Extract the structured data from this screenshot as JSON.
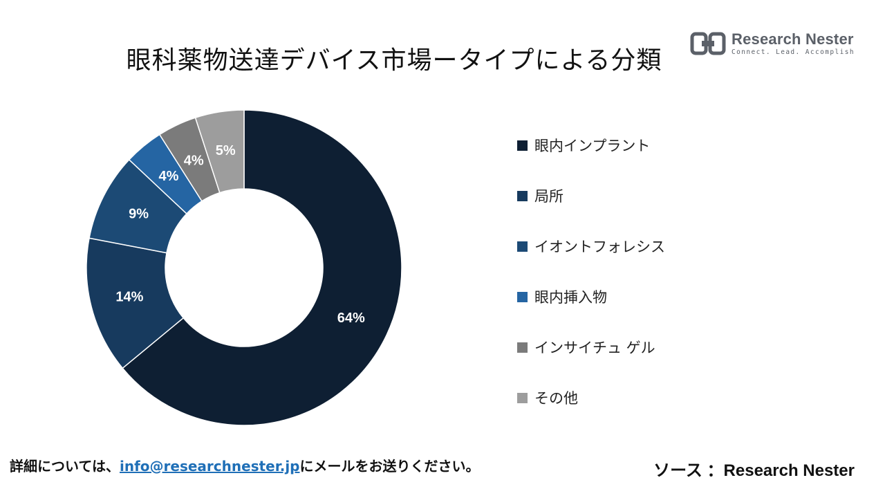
{
  "title": "眼科薬物送達デバイス市場ータイプによる分類",
  "logo": {
    "name": "Research Nester",
    "tagline": "Connect. Lead. Accomplish"
  },
  "colors": {
    "implant": "#0e1f33",
    "local": "#173a5e",
    "iontophoresis": "#1c4a75",
    "intraocular_insert": "#2565a3",
    "in_situ_gel": "#7b7b7b",
    "other": "#9d9d9d",
    "link": "#1f6fb7",
    "logo": "#5b6068"
  },
  "chart_data": {
    "type": "pie",
    "donut": true,
    "title": "眼科薬物送達デバイス市場ータイプによる分類",
    "legend_position": "right",
    "categories": [
      "眼内インプラント",
      "局所",
      "イオントフォレシス",
      "眼内挿入物",
      "インサイチュ ゲル",
      "その他"
    ],
    "values": [
      64,
      14,
      9,
      4,
      4,
      5
    ],
    "labels": [
      "64%",
      "14%",
      "9%",
      "4%",
      "4%",
      "5%"
    ],
    "colors": [
      "#0e1f33",
      "#173a5e",
      "#1c4a75",
      "#2565a3",
      "#7b7b7b",
      "#9d9d9d"
    ]
  },
  "footer": {
    "prefix": "詳細については、",
    "email": "info@researchnester.jp",
    "suffix": "にメールをお送りください。",
    "source": "ソース ：Research Nester"
  }
}
